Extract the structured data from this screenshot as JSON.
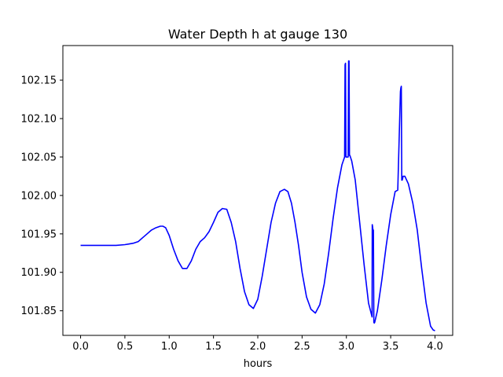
{
  "chart_data": {
    "type": "line",
    "title": "Water Depth h at gauge 130",
    "xlabel": "hours",
    "ylabel": "",
    "xlim": [
      -0.2,
      4.2
    ],
    "ylim": [
      101.818,
      102.195
    ],
    "xticks": [
      0.0,
      0.5,
      1.0,
      1.5,
      2.0,
      2.5,
      3.0,
      3.5,
      4.0
    ],
    "xtick_labels": [
      "0.0",
      "0.5",
      "1.0",
      "1.5",
      "2.0",
      "2.5",
      "3.0",
      "3.5",
      "4.0"
    ],
    "yticks": [
      101.85,
      101.9,
      101.95,
      102.0,
      102.05,
      102.1,
      102.15
    ],
    "ytick_labels": [
      "101.85",
      "101.90",
      "101.95",
      "102.00",
      "102.05",
      "102.10",
      "102.15"
    ],
    "grid": false,
    "series": [
      {
        "color": "#0000ff",
        "x": [
          0.0,
          0.1,
          0.2,
          0.3,
          0.4,
          0.5,
          0.55,
          0.6,
          0.65,
          0.7,
          0.75,
          0.8,
          0.85,
          0.9,
          0.93,
          0.96,
          1.0,
          1.05,
          1.1,
          1.15,
          1.2,
          1.25,
          1.3,
          1.35,
          1.4,
          1.45,
          1.5,
          1.55,
          1.6,
          1.65,
          1.7,
          1.75,
          1.8,
          1.85,
          1.9,
          1.95,
          2.0,
          2.05,
          2.1,
          2.15,
          2.2,
          2.25,
          2.3,
          2.34,
          2.38,
          2.42,
          2.46,
          2.5,
          2.55,
          2.6,
          2.65,
          2.7,
          2.75,
          2.8,
          2.85,
          2.9,
          2.95,
          2.98,
          2.985,
          2.99,
          2.995,
          3.0,
          3.02,
          3.025,
          3.03,
          3.035,
          3.04,
          3.06,
          3.1,
          3.15,
          3.2,
          3.25,
          3.29,
          3.292,
          3.295,
          3.3,
          3.305,
          3.31,
          3.315,
          3.32,
          3.35,
          3.4,
          3.45,
          3.5,
          3.55,
          3.58,
          3.61,
          3.615,
          3.62,
          3.625,
          3.63,
          3.635,
          3.64,
          3.66,
          3.7,
          3.75,
          3.8,
          3.85,
          3.9,
          3.95,
          3.98,
          4.0
        ],
        "y": [
          101.935,
          101.935,
          101.935,
          101.935,
          101.935,
          101.936,
          101.937,
          101.938,
          101.94,
          101.945,
          101.95,
          101.955,
          101.958,
          101.96,
          101.96,
          101.958,
          101.948,
          101.93,
          101.915,
          101.905,
          101.905,
          101.915,
          101.93,
          101.94,
          101.945,
          101.953,
          101.965,
          101.978,
          101.983,
          101.982,
          101.965,
          101.94,
          101.905,
          101.875,
          101.858,
          101.853,
          101.865,
          101.895,
          101.93,
          101.965,
          101.99,
          102.005,
          102.008,
          102.005,
          101.99,
          101.965,
          101.935,
          101.9,
          101.868,
          101.852,
          101.847,
          101.858,
          101.885,
          101.925,
          101.97,
          102.01,
          102.04,
          102.05,
          102.17,
          102.172,
          102.05,
          102.05,
          102.05,
          102.175,
          102.175,
          102.052,
          102.052,
          102.045,
          102.02,
          101.965,
          101.91,
          101.86,
          101.842,
          101.962,
          101.96,
          101.955,
          101.955,
          101.835,
          101.834,
          101.835,
          101.85,
          101.89,
          101.935,
          101.975,
          102.005,
          102.007,
          102.135,
          102.14,
          102.142,
          102.02,
          102.02,
          102.022,
          102.025,
          102.025,
          102.015,
          101.99,
          101.955,
          101.905,
          101.86,
          101.83,
          101.825,
          101.824
        ]
      }
    ]
  }
}
